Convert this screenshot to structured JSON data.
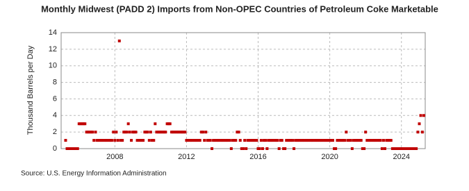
{
  "chart_data": {
    "type": "scatter",
    "title": "Monthly Midwest (PADD 2) Imports from Non-OPEC Countries of Petroleum Coke Marketable",
    "y_label": "Thousand Barrels per Day",
    "source": "Source: U.S. Energy Information Administration",
    "color": "#c00000",
    "grid": true,
    "xlim": [
      2005,
      2025.33
    ],
    "xticks": [
      2008,
      2012,
      2016,
      2020,
      2024
    ],
    "ylim": [
      0,
      14
    ],
    "yticks": [
      0,
      2,
      4,
      6,
      8,
      10,
      12,
      14
    ],
    "x": [
      2005.25,
      2005.33,
      2005.42,
      2005.5,
      2005.58,
      2005.67,
      2005.75,
      2005.83,
      2005.92,
      2006,
      2006.08,
      2006.17,
      2006.25,
      2006.33,
      2006.42,
      2006.5,
      2006.58,
      2006.67,
      2006.75,
      2006.83,
      2006.92,
      2007,
      2007.08,
      2007.17,
      2007.25,
      2007.33,
      2007.42,
      2007.5,
      2007.58,
      2007.67,
      2007.75,
      2007.83,
      2007.92,
      2008,
      2008.08,
      2008.17,
      2008.25,
      2008.33,
      2008.42,
      2008.5,
      2008.58,
      2008.67,
      2008.75,
      2008.83,
      2008.92,
      2009,
      2009.08,
      2009.17,
      2009.25,
      2009.33,
      2009.42,
      2009.5,
      2009.58,
      2009.67,
      2009.75,
      2009.83,
      2009.92,
      2010,
      2010.08,
      2010.17,
      2010.25,
      2010.33,
      2010.42,
      2010.5,
      2010.58,
      2010.67,
      2010.75,
      2010.83,
      2010.92,
      2011,
      2011.08,
      2011.17,
      2011.25,
      2011.33,
      2011.42,
      2011.5,
      2011.58,
      2011.67,
      2011.75,
      2011.83,
      2011.92,
      2012,
      2012.08,
      2012.17,
      2012.25,
      2012.33,
      2012.42,
      2012.5,
      2012.58,
      2012.67,
      2012.75,
      2012.83,
      2012.92,
      2013,
      2013.08,
      2013.17,
      2013.25,
      2013.33,
      2013.42,
      2013.5,
      2013.58,
      2013.67,
      2013.75,
      2013.83,
      2013.92,
      2014,
      2014.08,
      2014.17,
      2014.25,
      2014.33,
      2014.42,
      2014.5,
      2014.58,
      2014.67,
      2014.75,
      2014.83,
      2014.92,
      2015,
      2015.08,
      2015.17,
      2015.25,
      2015.33,
      2015.42,
      2015.5,
      2015.58,
      2015.67,
      2015.75,
      2015.83,
      2015.92,
      2016,
      2016.08,
      2016.17,
      2016.25,
      2016.33,
      2016.42,
      2016.5,
      2016.58,
      2016.67,
      2016.75,
      2016.83,
      2016.92,
      2017,
      2017.08,
      2017.17,
      2017.25,
      2017.33,
      2017.42,
      2017.5,
      2017.58,
      2017.67,
      2017.75,
      2017.83,
      2017.92,
      2018,
      2018.08,
      2018.17,
      2018.25,
      2018.33,
      2018.42,
      2018.5,
      2018.58,
      2018.67,
      2018.75,
      2018.83,
      2018.92,
      2019,
      2019.08,
      2019.17,
      2019.25,
      2019.33,
      2019.42,
      2019.5,
      2019.58,
      2019.67,
      2019.75,
      2019.83,
      2019.92,
      2020,
      2020.08,
      2020.17,
      2020.25,
      2020.33,
      2020.42,
      2020.5,
      2020.58,
      2020.67,
      2020.75,
      2020.83,
      2020.92,
      2021,
      2021.08,
      2021.17,
      2021.25,
      2021.33,
      2021.42,
      2021.5,
      2021.58,
      2021.67,
      2021.75,
      2021.83,
      2021.92,
      2022,
      2022.08,
      2022.17,
      2022.25,
      2022.33,
      2022.42,
      2022.5,
      2022.58,
      2022.67,
      2022.75,
      2022.83,
      2022.92,
      2023,
      2023.08,
      2023.17,
      2023.25,
      2023.33,
      2023.42,
      2023.5,
      2023.58,
      2023.67,
      2023.75,
      2023.83,
      2023.92,
      2024,
      2024.08,
      2024.17,
      2024.25,
      2024.33,
      2024.42,
      2024.5,
      2024.58,
      2024.67,
      2024.75,
      2024.83,
      2024.92,
      2025,
      2025.08,
      2025.17,
      2025.25
    ],
    "values": [
      1,
      0,
      0,
      0,
      0,
      0,
      0,
      0,
      0,
      3,
      3,
      3,
      3,
      3,
      2,
      2,
      2,
      2,
      2,
      1,
      2,
      1,
      1,
      1,
      1,
      1,
      1,
      1,
      1,
      1,
      1,
      1,
      2,
      1,
      2,
      1,
      13,
      1,
      1,
      2,
      2,
      2,
      3,
      2,
      1,
      2,
      2,
      2,
      1,
      1,
      1,
      1,
      1,
      2,
      2,
      2,
      1,
      2,
      1,
      1,
      3,
      2,
      2,
      2,
      2,
      2,
      2,
      2,
      3,
      3,
      3,
      2,
      2,
      2,
      2,
      2,
      2,
      2,
      2,
      2,
      2,
      1,
      1,
      1,
      1,
      1,
      1,
      1,
      1,
      1,
      1,
      2,
      2,
      1,
      2,
      1,
      1,
      1,
      0,
      1,
      1,
      1,
      1,
      1,
      1,
      1,
      1,
      1,
      1,
      1,
      1,
      0,
      1,
      1,
      1,
      2,
      2,
      1,
      0,
      0,
      1,
      0,
      1,
      1,
      1,
      1,
      1,
      1,
      1,
      0,
      0,
      1,
      0,
      1,
      1,
      0,
      1,
      1,
      1,
      1,
      1,
      1,
      1,
      0,
      1,
      1,
      0,
      0,
      1,
      1,
      1,
      1,
      1,
      0,
      1,
      1,
      1,
      1,
      1,
      1,
      1,
      1,
      1,
      1,
      1,
      1,
      1,
      1,
      1,
      1,
      1,
      1,
      1,
      1,
      1,
      1,
      1,
      1,
      1,
      1,
      0,
      0,
      1,
      1,
      1,
      1,
      1,
      1,
      2,
      1,
      1,
      1,
      0,
      1,
      1,
      1,
      1,
      1,
      1,
      0,
      0,
      2,
      1,
      1,
      1,
      1,
      1,
      1,
      1,
      1,
      1,
      1,
      0,
      1,
      0,
      1,
      1,
      1,
      1,
      0,
      0,
      0,
      0,
      0,
      0,
      0,
      0,
      0,
      0,
      0,
      0,
      0,
      0,
      0,
      0,
      0,
      2,
      3,
      4,
      2,
      4
    ]
  }
}
